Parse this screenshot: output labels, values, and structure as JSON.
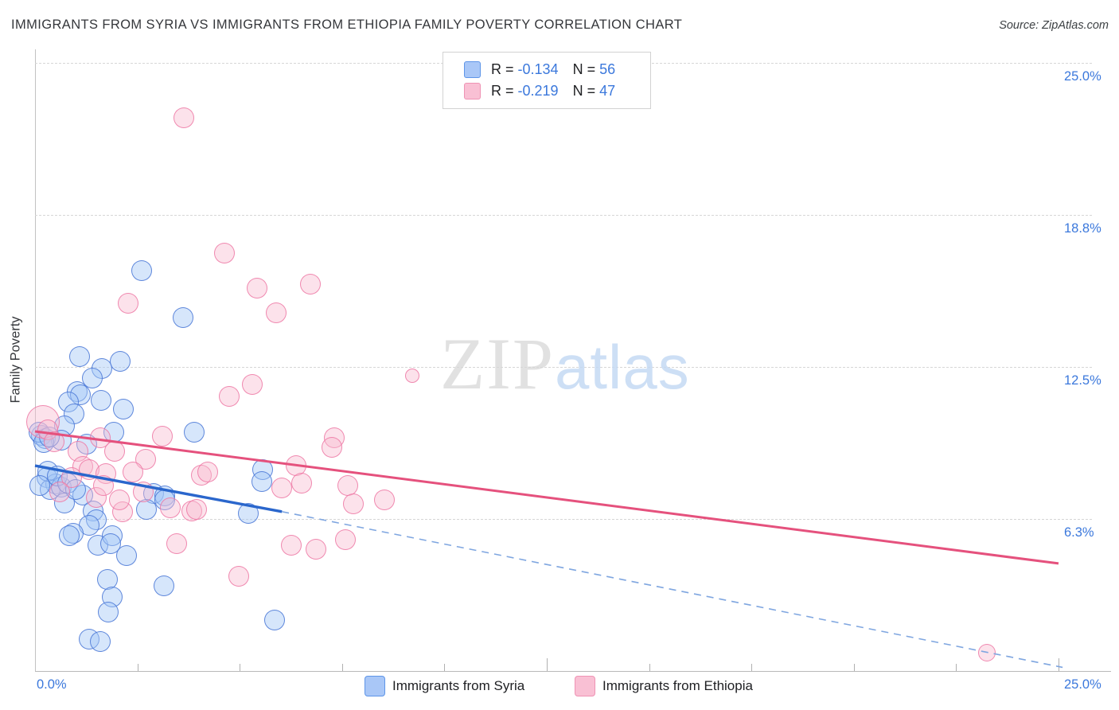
{
  "page": {
    "title": "IMMIGRANTS FROM SYRIA VS IMMIGRANTS FROM ETHIOPIA FAMILY POVERTY CORRELATION CHART",
    "source": "Source: ZipAtlas.com"
  },
  "watermark": {
    "zip": "ZIP",
    "atlas": "atlas"
  },
  "stats_box": {
    "rows": [
      {
        "series": "syria",
        "r_label": "R = ",
        "r_value": "-0.134",
        "n_label": "N = ",
        "n_value": "56"
      },
      {
        "series": "ethiopia",
        "r_label": "R = ",
        "r_value": "-0.219",
        "n_label": "N = ",
        "n_value": "47"
      }
    ]
  },
  "legend": {
    "items": [
      {
        "series": "syria",
        "label": "Immigrants from Syria"
      },
      {
        "series": "ethiopia",
        "label": "Immigrants from Ethiopia"
      }
    ]
  },
  "chart_data": {
    "type": "scatter",
    "title": "Immigrants from Syria vs Immigrants from Ethiopia Family Poverty",
    "x_axis": {
      "min": 0,
      "max": 25,
      "unit": "%",
      "min_label": "0.0%",
      "max_label": "25.0%",
      "tick_step": 2.5,
      "tall_ticks": [
        12.5,
        25
      ]
    },
    "y_axis": {
      "label": "Family Poverty",
      "min": 0,
      "max": 25,
      "unit": "%",
      "gridlines": [
        25,
        18.75,
        12.5,
        6.25
      ],
      "gridline_labels": [
        "25.0%",
        "18.8%",
        "12.5%",
        "6.3%"
      ]
    },
    "series": [
      {
        "name": "Immigrants from Syria",
        "r": -0.134,
        "n": 56,
        "stroke": "rgba(72,118,214,0.85)",
        "fill": "rgba(164,199,247,0.45)",
        "swatch_fill": "#a9c7f7",
        "swatch_stroke": "#5e95e8",
        "trend_color": "#2a66cc",
        "trend_solid": [
          [
            0,
            8.44
          ],
          [
            6.03,
            6.55
          ]
        ],
        "trend_dashed": [
          [
            6.03,
            6.55
          ],
          [
            25.1,
            0.15
          ]
        ],
        "points": [
          [
            2.6,
            16.46
          ],
          [
            3.62,
            14.53
          ],
          [
            1.09,
            12.93
          ],
          [
            2.08,
            12.73
          ],
          [
            1.63,
            12.43
          ],
          [
            1.4,
            12.04
          ],
          [
            1.03,
            11.49
          ],
          [
            1.11,
            11.36
          ],
          [
            0.82,
            11.06
          ],
          [
            1.61,
            11.13
          ],
          [
            0.95,
            10.57
          ],
          [
            2.16,
            10.77
          ],
          [
            0.72,
            10.08
          ],
          [
            0.16,
            9.69
          ],
          [
            0.25,
            9.56
          ],
          [
            0.64,
            9.49
          ],
          [
            1.26,
            9.33
          ],
          [
            1.92,
            9.82
          ],
          [
            3.89,
            9.82
          ],
          [
            5.56,
            8.28
          ],
          [
            5.54,
            7.79
          ],
          [
            2.9,
            7.3
          ],
          [
            3.17,
            7.2
          ],
          [
            0.29,
            7.95
          ],
          [
            0.51,
            7.69
          ],
          [
            0.37,
            7.46
          ],
          [
            0.64,
            7.56
          ],
          [
            1.17,
            7.23
          ],
          [
            0.72,
            6.9
          ],
          [
            1.42,
            6.58
          ],
          [
            1.5,
            6.22
          ],
          [
            1.32,
            5.99
          ],
          [
            2.72,
            6.64
          ],
          [
            3.17,
            7.03
          ],
          [
            5.21,
            6.48
          ],
          [
            0.93,
            5.66
          ],
          [
            0.84,
            5.56
          ],
          [
            1.54,
            5.17
          ],
          [
            1.89,
            5.56
          ],
          [
            1.85,
            5.24
          ],
          [
            2.24,
            4.75
          ],
          [
            1.77,
            3.76
          ],
          [
            1.89,
            3.04
          ],
          [
            3.15,
            3.5
          ],
          [
            1.79,
            2.42
          ],
          [
            5.85,
            2.09
          ],
          [
            1.32,
            1.31
          ],
          [
            1.59,
            1.21
          ],
          [
            0.1,
            9.82
          ],
          [
            0.21,
            9.39
          ],
          [
            0.35,
            9.62
          ],
          [
            0.31,
            8.21
          ],
          [
            0.54,
            8.02
          ],
          [
            0.12,
            7.62
          ],
          [
            0.8,
            7.72
          ],
          [
            0.99,
            7.46
          ]
        ]
      },
      {
        "name": "Immigrants from Ethiopia",
        "r": -0.219,
        "n": 47,
        "stroke": "rgba(236,114,160,0.8)",
        "fill": "rgba(247,187,208,0.42)",
        "swatch_fill": "#f9c0d4",
        "swatch_stroke": "#ef93b4",
        "trend_color": "#e5517d",
        "trend_solid": [
          [
            0,
            9.85
          ],
          [
            25,
            4.42
          ]
        ],
        "trend_dashed": null,
        "points": [
          [
            3.63,
            22.74
          ],
          [
            4.63,
            17.18
          ],
          [
            2.27,
            15.12
          ],
          [
            5.42,
            15.74
          ],
          [
            6.73,
            15.9
          ],
          [
            5.89,
            14.73
          ],
          [
            5.31,
            11.78
          ],
          [
            4.74,
            11.29
          ],
          [
            0.19,
            10.24,
            21
          ],
          [
            1.59,
            9.59
          ],
          [
            1.05,
            9.03
          ],
          [
            1.94,
            9.03
          ],
          [
            3.11,
            9.65
          ],
          [
            2.7,
            8.7
          ],
          [
            1.17,
            8.41
          ],
          [
            1.32,
            8.28
          ],
          [
            1.73,
            8.12
          ],
          [
            2.39,
            8.18
          ],
          [
            4.06,
            8.05
          ],
          [
            4.22,
            8.18
          ],
          [
            6.03,
            7.53
          ],
          [
            6.38,
            8.44
          ],
          [
            6.51,
            7.72
          ],
          [
            7.31,
            9.59
          ],
          [
            7.25,
            9.2
          ],
          [
            7.64,
            7.62
          ],
          [
            2.64,
            7.36
          ],
          [
            1.5,
            7.13
          ],
          [
            2.14,
            6.54
          ],
          [
            3.3,
            6.71
          ],
          [
            3.83,
            6.58
          ],
          [
            3.95,
            6.64
          ],
          [
            7.78,
            6.87
          ],
          [
            8.54,
            7.03
          ],
          [
            3.46,
            5.24
          ],
          [
            6.26,
            5.17
          ],
          [
            6.86,
            5.01
          ],
          [
            7.58,
            5.4
          ],
          [
            4.98,
            3.89
          ],
          [
            9.22,
            12.14,
            9
          ],
          [
            23.25,
            0.75,
            11
          ],
          [
            0.31,
            9.92
          ],
          [
            0.47,
            9.42
          ],
          [
            0.89,
            7.95
          ],
          [
            0.6,
            7.36
          ],
          [
            1.67,
            7.62
          ],
          [
            2.06,
            7.03
          ]
        ]
      }
    ]
  }
}
